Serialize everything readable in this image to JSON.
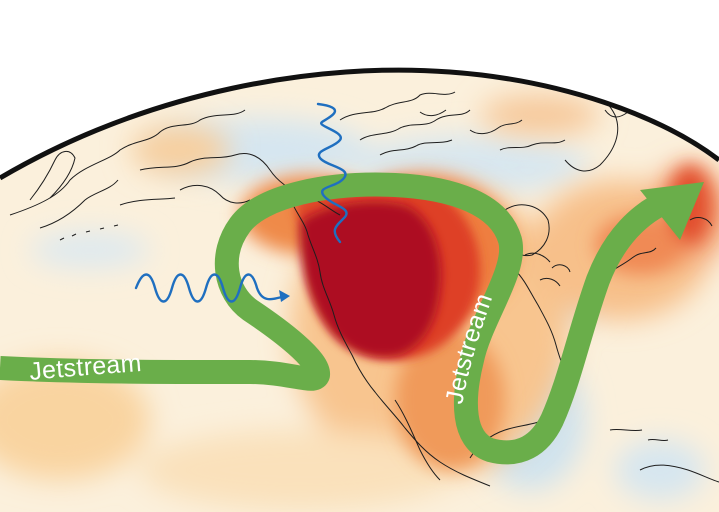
{
  "labels": {
    "jet_left": "Jetstream",
    "jet_right": "Jetstream"
  },
  "colors": {
    "ocean_base": "#fbf0dc",
    "heat_light": "#fbc58a",
    "heat_mid": "#ef7b3d",
    "heat_strong": "#dc3520",
    "heat_core": "#ae0f23",
    "cool": "#cfe3ef",
    "jetstream": "#6aae4a",
    "jetstream_label": "#ffffff",
    "waves": "#1f6fc0",
    "coastline": "#1e1e1e",
    "horizon": "#111111"
  },
  "icons": {
    "wave_left": "incoming-wave-arrow-icon",
    "wave_top": "vertical-wave-icon",
    "jet_arrow": "jetstream-arrowhead-icon"
  }
}
